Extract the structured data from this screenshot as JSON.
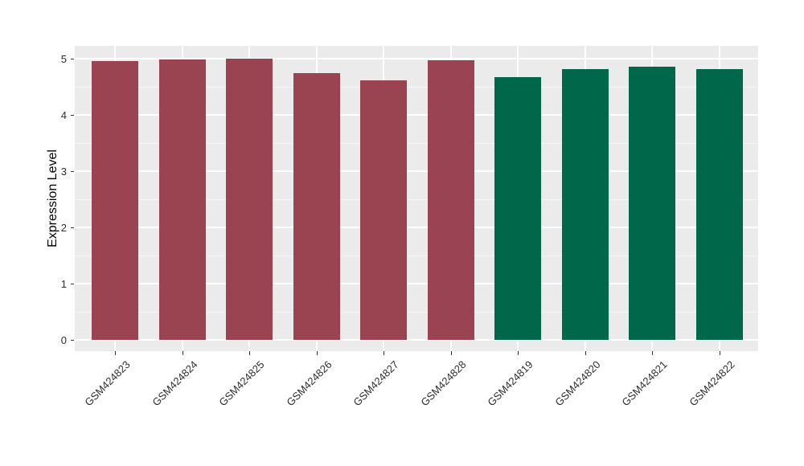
{
  "figure": {
    "background": "#ffffff",
    "panel_background": "#EBEBEB",
    "gridline_color": "#FFFFFF",
    "tick_color": "#333333",
    "text_color": "#2e2e2e"
  },
  "chart_data": {
    "type": "bar",
    "title": "",
    "xlabel": "",
    "ylabel": "Expression Level",
    "categories": [
      "GSM424823",
      "GSM424824",
      "GSM424825",
      "GSM424826",
      "GSM424827",
      "GSM424828",
      "GSM424819",
      "GSM424820",
      "GSM424821",
      "GSM424822"
    ],
    "values": [
      4.96,
      4.98,
      5.0,
      4.75,
      4.62,
      4.97,
      4.67,
      4.81,
      4.86,
      4.82
    ],
    "bar_colors": [
      "#9B4451",
      "#9B4451",
      "#9B4451",
      "#9B4451",
      "#9B4451",
      "#9B4451",
      "#00684A",
      "#00684A",
      "#00684A",
      "#00684A"
    ],
    "group_colors": {
      "maroon": "#9B4451",
      "green": "#00684A"
    },
    "yticks": [
      0,
      1,
      2,
      3,
      4,
      5
    ],
    "ylim": [
      -0.2,
      5.23
    ],
    "grid": true,
    "minor_grid_step": 0.5,
    "legend_position": "none",
    "x_label_angle": 45
  }
}
